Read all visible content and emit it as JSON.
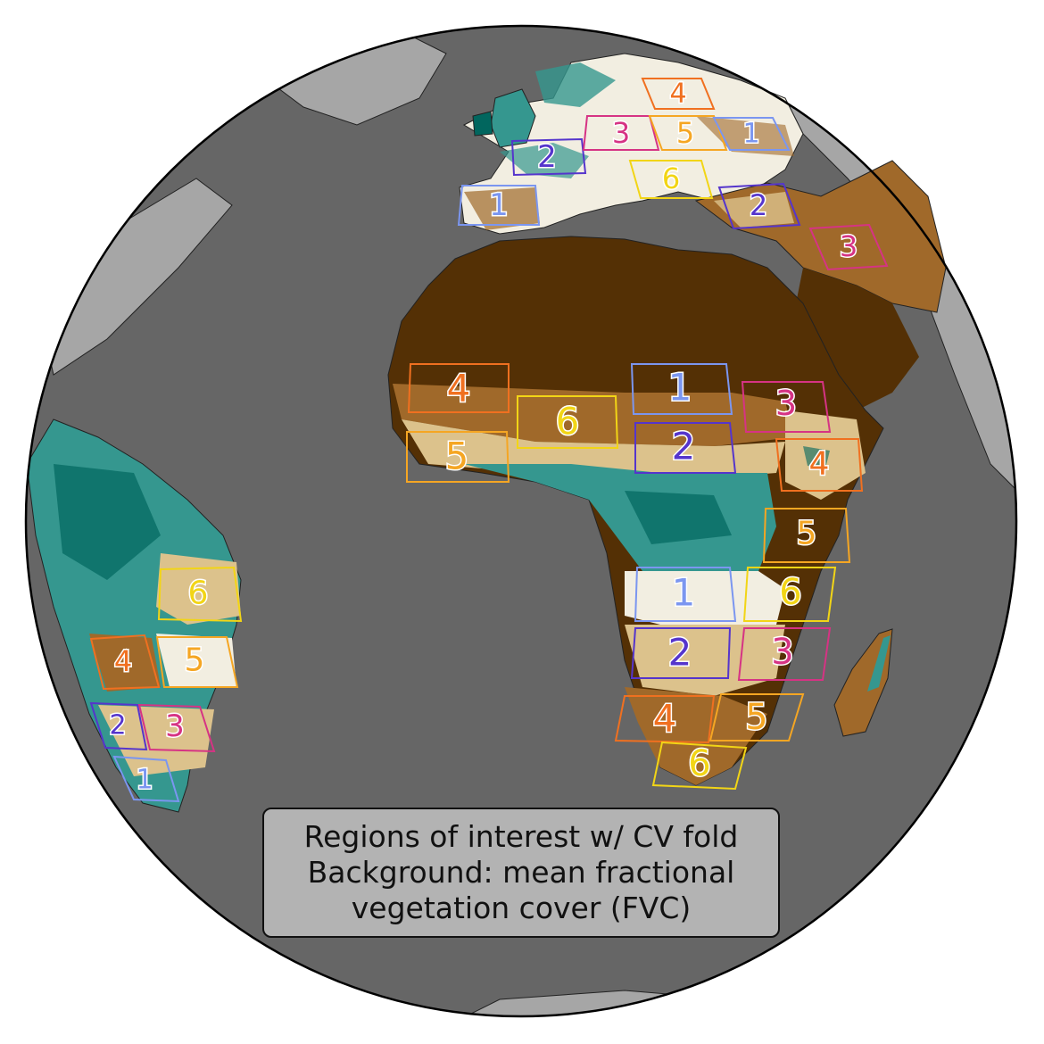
{
  "legend": {
    "lines": [
      "Regions of interest w/ CV fold",
      "Background: mean fractional",
      "vegetation cover (FVC)"
    ]
  },
  "colors": {
    "ocean": "#666666",
    "land_outside": "#a6a6a6",
    "desert": "#543005",
    "dry": "#a0692a",
    "sparse": "#dcc28c",
    "light": "#f2eee1",
    "green": "#35978f",
    "dense": "#01665e",
    "fold_1": "#7b96f0",
    "fold_2": "#5535cc",
    "fold_3": "#d63384",
    "fold_4": "#f07020",
    "fold_5": "#f5a623",
    "fold_6": "#f2d516"
  },
  "regions": [
    {
      "fold": "1",
      "label": "1",
      "area": "europe-iberia"
    },
    {
      "fold": "2",
      "label": "2",
      "area": "europe-france"
    },
    {
      "fold": "3",
      "label": "3",
      "area": "europe-central"
    },
    {
      "fold": "5",
      "label": "5",
      "area": "europe-east"
    },
    {
      "fold": "4",
      "label": "4",
      "area": "europe-north-east"
    },
    {
      "fold": "1",
      "label": "1",
      "area": "europe-russia"
    },
    {
      "fold": "6",
      "label": "6",
      "area": "europe-balkans"
    },
    {
      "fold": "2",
      "label": "2",
      "area": "turkey"
    },
    {
      "fold": "3",
      "label": "3",
      "area": "middle-east"
    },
    {
      "fold": "4",
      "label": "4",
      "area": "west-africa-sahel"
    },
    {
      "fold": "5",
      "label": "5",
      "area": "west-africa-coast"
    },
    {
      "fold": "6",
      "label": "6",
      "area": "west-africa-central"
    },
    {
      "fold": "1",
      "label": "1",
      "area": "sahel-north"
    },
    {
      "fold": "2",
      "label": "2",
      "area": "sahel-south"
    },
    {
      "fold": "3",
      "label": "3",
      "area": "sudan"
    },
    {
      "fold": "4",
      "label": "4",
      "area": "ethiopia"
    },
    {
      "fold": "5",
      "label": "5",
      "area": "east-africa"
    },
    {
      "fold": "1",
      "label": "1",
      "area": "angola"
    },
    {
      "fold": "6",
      "label": "6",
      "area": "tanzania"
    },
    {
      "fold": "2",
      "label": "2",
      "area": "namibia-north"
    },
    {
      "fold": "3",
      "label": "3",
      "area": "mozambique"
    },
    {
      "fold": "4",
      "label": "4",
      "area": "namibia-south"
    },
    {
      "fold": "5",
      "label": "5",
      "area": "south-africa-east"
    },
    {
      "fold": "6",
      "label": "6",
      "area": "south-africa-south"
    },
    {
      "fold": "6",
      "label": "6",
      "area": "brazil-east"
    },
    {
      "fold": "4",
      "label": "4",
      "area": "bolivia"
    },
    {
      "fold": "5",
      "label": "5",
      "area": "brazil-south"
    },
    {
      "fold": "2",
      "label": "2",
      "area": "paraguay"
    },
    {
      "fold": "3",
      "label": "3",
      "area": "brazil-south-east"
    },
    {
      "fold": "1",
      "label": "1",
      "area": "argentina"
    }
  ]
}
